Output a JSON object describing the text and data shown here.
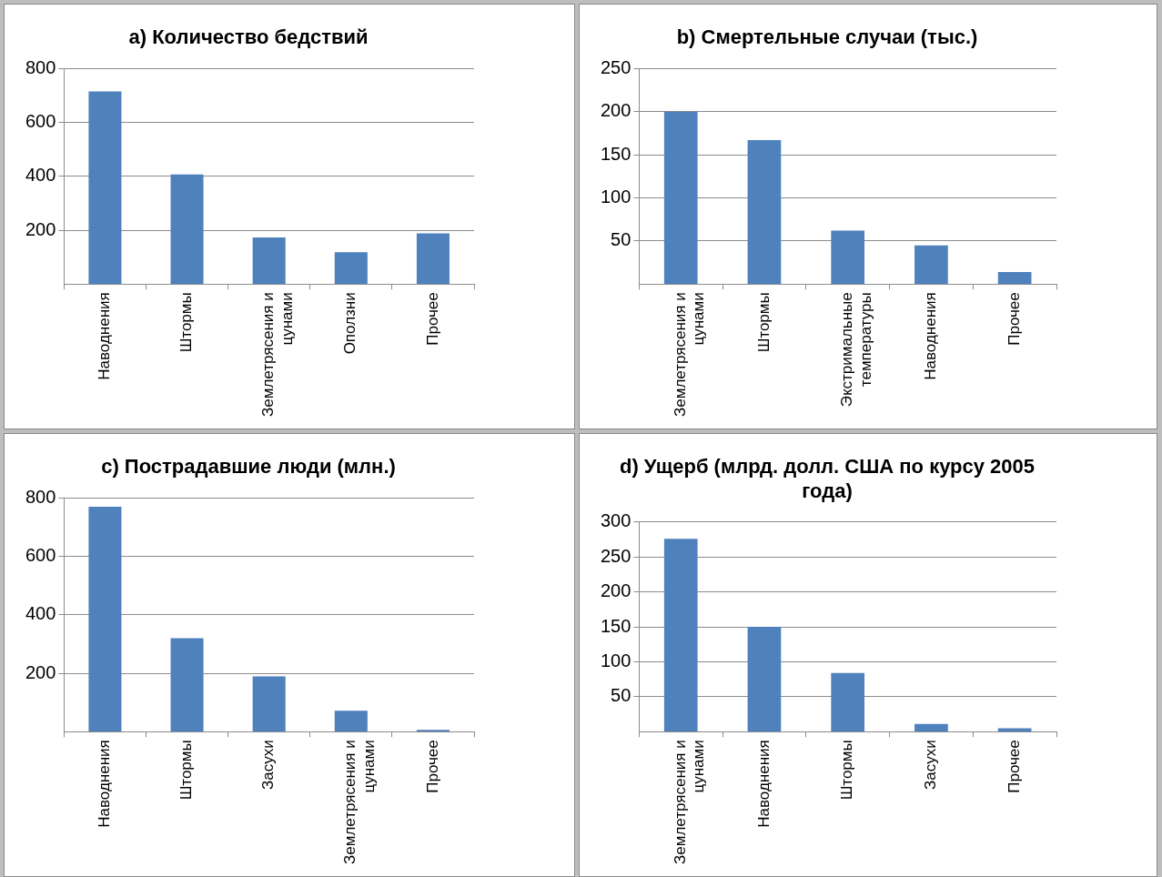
{
  "chart_data": [
    {
      "type": "bar",
      "title": "a) Количество бедствий",
      "categories": [
        "Наводнения",
        "Штормы",
        "Землетрясения и цунами",
        "Оползни",
        "Прочее"
      ],
      "values": [
        715,
        407,
        173,
        118,
        188
      ],
      "color": "#4f81bd",
      "ylim": [
        0,
        800
      ],
      "yticks": [
        200,
        400,
        600,
        800
      ],
      "grid": "y",
      "legend": false
    },
    {
      "type": "bar",
      "title": "b) Смертельные случаи (тыс.)",
      "categories": [
        "Землетрясения и цунами",
        "Штормы",
        "Экстримальные температуры",
        "Наводнения",
        "Прочее"
      ],
      "values": [
        200,
        167,
        62,
        45,
        14
      ],
      "color": "#4f81bd",
      "ylim": [
        0,
        250
      ],
      "yticks": [
        50,
        100,
        150,
        200,
        250
      ],
      "grid": "y",
      "legend": false
    },
    {
      "type": "bar",
      "title": "c) Пострадавшие люди (млн.)",
      "categories": [
        "Наводнения",
        "Штормы",
        "Засухи",
        "Землетрясения и цунами",
        "Прочее"
      ],
      "values": [
        770,
        320,
        189,
        72,
        6
      ],
      "color": "#4f81bd",
      "ylim": [
        0,
        800
      ],
      "yticks": [
        200,
        400,
        600,
        800
      ],
      "grid": "y",
      "legend": false
    },
    {
      "type": "bar",
      "title": "d) Ущерб (млрд. долл. США по курсу 2005 года)",
      "categories": [
        "Землетрясения и цунами",
        "Наводнения",
        "Штормы",
        "Засухи",
        "Прочее"
      ],
      "values": [
        276,
        150,
        84,
        11,
        5
      ],
      "color": "#4f81bd",
      "ylim": [
        0,
        300
      ],
      "yticks": [
        50,
        100,
        150,
        200,
        250,
        300
      ],
      "grid": "y",
      "legend": false
    }
  ]
}
